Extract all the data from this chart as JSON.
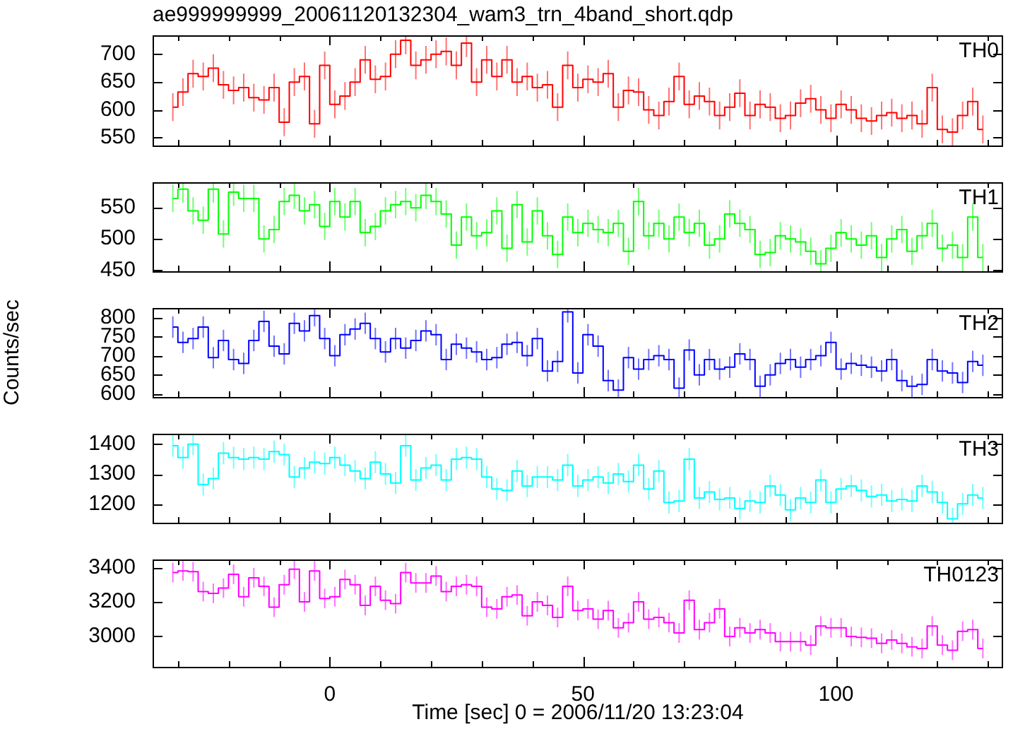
{
  "chart_data": [
    {
      "type": "step",
      "title": "ae999999999_20061120132304_wam3_trn_4band_short.qdp",
      "tick_labels": "y",
      "x": [
        -31,
        -29,
        -27,
        -25,
        -23,
        -21,
        -19,
        -17,
        -15,
        -13,
        -11,
        -9,
        -7,
        -5,
        -3,
        -1,
        1,
        3,
        5,
        7,
        9,
        11,
        13,
        15,
        17,
        19,
        21,
        23,
        25,
        27,
        29,
        31,
        33,
        35,
        37,
        39,
        41,
        43,
        45,
        47,
        49,
        51,
        53,
        55,
        57,
        59,
        61,
        63,
        65,
        67,
        69,
        71,
        73,
        75,
        77,
        79,
        81,
        83,
        85,
        87,
        89,
        91,
        93,
        95,
        97,
        99,
        101,
        103,
        105,
        107,
        109,
        111,
        113,
        115,
        117,
        119,
        121,
        123,
        125,
        127,
        129
      ],
      "xlim": [
        -35,
        133
      ],
      "xticks": [
        {
          "value": -30,
          "label": null
        },
        {
          "value": -20,
          "label": null
        },
        {
          "value": -10,
          "label": null
        },
        0,
        {
          "value": 10,
          "label": null
        },
        {
          "value": 20,
          "label": null
        },
        {
          "value": 30,
          "label": null
        },
        {
          "value": 40,
          "label": null
        },
        50,
        {
          "value": 60,
          "label": null
        },
        {
          "value": 70,
          "label": null
        },
        {
          "value": 80,
          "label": null
        },
        {
          "value": 90,
          "label": null
        },
        100,
        {
          "value": 110,
          "label": null
        },
        {
          "value": 120,
          "label": null
        },
        {
          "value": 130,
          "label": null
        }
      ],
      "ylim": [
        536,
        734
      ],
      "yticks": [
        550,
        600,
        650,
        700
      ],
      "series": [
        {
          "name": "TH0",
          "color": "#ff0000",
          "values": [
            605,
            632,
            665,
            660,
            675,
            645,
            635,
            640,
            622,
            618,
            640,
            578,
            650,
            660,
            575,
            680,
            610,
            625,
            650,
            690,
            655,
            660,
            700,
            725,
            680,
            690,
            700,
            705,
            680,
            720,
            650,
            690,
            660,
            690,
            650,
            660,
            640,
            645,
            605,
            680,
            640,
            655,
            650,
            665,
            605,
            635,
            632,
            600,
            590,
            615,
            660,
            610,
            625,
            615,
            590,
            605,
            630,
            590,
            610,
            605,
            585,
            590,
            612,
            620,
            600,
            585,
            610,
            600,
            585,
            580,
            590,
            595,
            585,
            590,
            575,
            640,
            565,
            560,
            590,
            615,
            565
          ],
          "errors": [
            25,
            25,
            25,
            25,
            25,
            25,
            25,
            25,
            25,
            25,
            25,
            25,
            25,
            25,
            25,
            25,
            25,
            25,
            25,
            25,
            25,
            25,
            25,
            25,
            25,
            25,
            25,
            25,
            25,
            25,
            25,
            25,
            25,
            25,
            25,
            25,
            25,
            25,
            25,
            25,
            25,
            25,
            25,
            25,
            25,
            25,
            25,
            25,
            25,
            25,
            25,
            25,
            25,
            25,
            25,
            25,
            25,
            25,
            25,
            25,
            25,
            25,
            25,
            25,
            25,
            25,
            25,
            25,
            25,
            25,
            25,
            25,
            25,
            25,
            25,
            25,
            25,
            25,
            25,
            25,
            25
          ]
        }
      ]
    },
    {
      "type": "step",
      "tick_labels": "y",
      "x": [
        -31,
        -29,
        -27,
        -25,
        -23,
        -21,
        -19,
        -17,
        -15,
        -13,
        -11,
        -9,
        -7,
        -5,
        -3,
        -1,
        1,
        3,
        5,
        7,
        9,
        11,
        13,
        15,
        17,
        19,
        21,
        23,
        25,
        27,
        29,
        31,
        33,
        35,
        37,
        39,
        41,
        43,
        45,
        47,
        49,
        51,
        53,
        55,
        57,
        59,
        61,
        63,
        65,
        67,
        69,
        71,
        73,
        75,
        77,
        79,
        81,
        83,
        85,
        87,
        89,
        91,
        93,
        95,
        97,
        99,
        101,
        103,
        105,
        107,
        109,
        111,
        113,
        115,
        117,
        119,
        121,
        123,
        125,
        127,
        129
      ],
      "xlim": [
        -35,
        133
      ],
      "xticks": [
        {
          "value": -30,
          "label": null
        },
        {
          "value": -20,
          "label": null
        },
        {
          "value": -10,
          "label": null
        },
        0,
        {
          "value": 10,
          "label": null
        },
        {
          "value": 20,
          "label": null
        },
        {
          "value": 30,
          "label": null
        },
        {
          "value": 40,
          "label": null
        },
        50,
        {
          "value": 60,
          "label": null
        },
        {
          "value": 70,
          "label": null
        },
        {
          "value": 80,
          "label": null
        },
        {
          "value": 90,
          "label": null
        },
        100,
        {
          "value": 110,
          "label": null
        },
        {
          "value": 120,
          "label": null
        },
        {
          "value": 130,
          "label": null
        }
      ],
      "ylim": [
        448,
        591
      ],
      "yticks": [
        450,
        500,
        550
      ],
      "series": [
        {
          "name": "TH1",
          "color": "#00ff00",
          "values": [
            565,
            580,
            545,
            530,
            580,
            508,
            575,
            565,
            565,
            500,
            515,
            560,
            570,
            545,
            555,
            520,
            560,
            535,
            560,
            510,
            520,
            545,
            555,
            560,
            550,
            570,
            560,
            540,
            490,
            535,
            505,
            510,
            545,
            485,
            555,
            495,
            545,
            505,
            475,
            535,
            510,
            525,
            515,
            510,
            525,
            480,
            560,
            505,
            525,
            500,
            535,
            510,
            525,
            490,
            500,
            540,
            525,
            515,
            475,
            478,
            505,
            500,
            495,
            480,
            460,
            485,
            510,
            500,
            490,
            505,
            470,
            500,
            515,
            480,
            505,
            525,
            485,
            490,
            470,
            535,
            470
          ],
          "errors": [
            22,
            22,
            22,
            22,
            22,
            22,
            22,
            22,
            22,
            22,
            22,
            22,
            22,
            22,
            22,
            22,
            22,
            22,
            22,
            22,
            22,
            22,
            22,
            22,
            22,
            22,
            22,
            22,
            22,
            22,
            22,
            22,
            22,
            22,
            22,
            22,
            22,
            22,
            22,
            22,
            22,
            22,
            22,
            22,
            22,
            22,
            22,
            22,
            22,
            22,
            22,
            22,
            22,
            22,
            22,
            22,
            22,
            22,
            22,
            22,
            22,
            22,
            22,
            22,
            22,
            22,
            22,
            22,
            22,
            22,
            22,
            22,
            22,
            22,
            22,
            22,
            22,
            22,
            22,
            22,
            22
          ]
        }
      ]
    },
    {
      "type": "step",
      "tick_labels": "y",
      "ylabel": "Counts/sec",
      "x": [
        -31,
        -29,
        -27,
        -25,
        -23,
        -21,
        -19,
        -17,
        -15,
        -13,
        -11,
        -9,
        -7,
        -5,
        -3,
        -1,
        1,
        3,
        5,
        7,
        9,
        11,
        13,
        15,
        17,
        19,
        21,
        23,
        25,
        27,
        29,
        31,
        33,
        35,
        37,
        39,
        41,
        43,
        45,
        47,
        49,
        51,
        53,
        55,
        57,
        59,
        61,
        63,
        65,
        67,
        69,
        71,
        73,
        75,
        77,
        79,
        81,
        83,
        85,
        87,
        89,
        91,
        93,
        95,
        97,
        99,
        101,
        103,
        105,
        107,
        109,
        111,
        113,
        115,
        117,
        119,
        121,
        123,
        125,
        127,
        129
      ],
      "xlim": [
        -35,
        133
      ],
      "xticks": [
        {
          "value": -30,
          "label": null
        },
        {
          "value": -20,
          "label": null
        },
        {
          "value": -10,
          "label": null
        },
        0,
        {
          "value": 10,
          "label": null
        },
        {
          "value": 20,
          "label": null
        },
        {
          "value": 30,
          "label": null
        },
        {
          "value": 40,
          "label": null
        },
        50,
        {
          "value": 60,
          "label": null
        },
        {
          "value": 70,
          "label": null
        },
        {
          "value": 80,
          "label": null
        },
        {
          "value": 90,
          "label": null
        },
        100,
        {
          "value": 110,
          "label": null
        },
        {
          "value": 120,
          "label": null
        },
        {
          "value": 130,
          "label": null
        }
      ],
      "ylim": [
        592,
        825
      ],
      "yticks": [
        600,
        650,
        700,
        750,
        800
      ],
      "series": [
        {
          "name": "TH2",
          "color": "#0000ff",
          "values": [
            775,
            735,
            745,
            775,
            695,
            740,
            690,
            680,
            740,
            790,
            725,
            705,
            785,
            765,
            805,
            745,
            700,
            755,
            770,
            785,
            745,
            710,
            745,
            720,
            740,
            765,
            755,
            690,
            730,
            720,
            710,
            690,
            695,
            730,
            735,
            700,
            745,
            660,
            685,
            815,
            655,
            755,
            725,
            635,
            610,
            695,
            665,
            690,
            700,
            690,
            615,
            715,
            650,
            690,
            665,
            670,
            705,
            690,
            620,
            650,
            680,
            690,
            670,
            690,
            700,
            735,
            665,
            680,
            675,
            670,
            660,
            690,
            635,
            620,
            625,
            690,
            660,
            655,
            630,
            685,
            675
          ],
          "errors": [
            28,
            28,
            28,
            28,
            28,
            28,
            28,
            28,
            28,
            28,
            28,
            28,
            28,
            28,
            28,
            28,
            28,
            28,
            28,
            28,
            28,
            28,
            28,
            28,
            28,
            28,
            28,
            28,
            28,
            28,
            28,
            28,
            28,
            28,
            28,
            28,
            28,
            28,
            28,
            28,
            28,
            28,
            28,
            28,
            28,
            28,
            28,
            28,
            28,
            28,
            28,
            28,
            28,
            28,
            28,
            28,
            28,
            28,
            28,
            28,
            28,
            28,
            28,
            28,
            28,
            28,
            28,
            28,
            28,
            28,
            28,
            28,
            28,
            28,
            28,
            28,
            28,
            28,
            28,
            28,
            28
          ]
        }
      ]
    },
    {
      "type": "step",
      "tick_labels": "y",
      "x": [
        -31,
        -29,
        -27,
        -25,
        -23,
        -21,
        -19,
        -17,
        -15,
        -13,
        -11,
        -9,
        -7,
        -5,
        -3,
        -1,
        1,
        3,
        5,
        7,
        9,
        11,
        13,
        15,
        17,
        19,
        21,
        23,
        25,
        27,
        29,
        31,
        33,
        35,
        37,
        39,
        41,
        43,
        45,
        47,
        49,
        51,
        53,
        55,
        57,
        59,
        61,
        63,
        65,
        67,
        69,
        71,
        73,
        75,
        77,
        79,
        81,
        83,
        85,
        87,
        89,
        91,
        93,
        95,
        97,
        99,
        101,
        103,
        105,
        107,
        109,
        111,
        113,
        115,
        117,
        119,
        121,
        123,
        125,
        127,
        129
      ],
      "xlim": [
        -35,
        133
      ],
      "xticks": [
        {
          "value": -30,
          "label": null
        },
        {
          "value": -20,
          "label": null
        },
        {
          "value": -10,
          "label": null
        },
        0,
        {
          "value": 10,
          "label": null
        },
        {
          "value": 20,
          "label": null
        },
        {
          "value": 30,
          "label": null
        },
        {
          "value": 40,
          "label": null
        },
        50,
        {
          "value": 60,
          "label": null
        },
        {
          "value": 70,
          "label": null
        },
        {
          "value": 80,
          "label": null
        },
        {
          "value": 90,
          "label": null
        },
        100,
        {
          "value": 110,
          "label": null
        },
        {
          "value": 120,
          "label": null
        },
        {
          "value": 130,
          "label": null
        }
      ],
      "ylim": [
        1137,
        1435
      ],
      "yticks": [
        1200,
        1300,
        1400
      ],
      "series": [
        {
          "name": "TH3",
          "color": "#00ffff",
          "values": [
            1395,
            1355,
            1400,
            1265,
            1285,
            1370,
            1355,
            1350,
            1355,
            1350,
            1375,
            1365,
            1290,
            1320,
            1340,
            1335,
            1355,
            1330,
            1310,
            1285,
            1340,
            1300,
            1270,
            1395,
            1280,
            1320,
            1330,
            1280,
            1350,
            1355,
            1350,
            1290,
            1250,
            1245,
            1310,
            1260,
            1290,
            1290,
            1280,
            1330,
            1260,
            1280,
            1290,
            1270,
            1300,
            1275,
            1330,
            1250,
            1310,
            1205,
            1210,
            1350,
            1220,
            1240,
            1215,
            1220,
            1185,
            1210,
            1205,
            1260,
            1230,
            1180,
            1220,
            1205,
            1280,
            1205,
            1250,
            1260,
            1245,
            1225,
            1230,
            1210,
            1215,
            1210,
            1260,
            1240,
            1205,
            1150,
            1200,
            1230,
            1220
          ],
          "errors": [
            37,
            37,
            37,
            37,
            37,
            37,
            37,
            37,
            37,
            37,
            37,
            37,
            37,
            37,
            37,
            37,
            37,
            37,
            37,
            37,
            37,
            37,
            37,
            37,
            37,
            37,
            37,
            37,
            37,
            37,
            37,
            37,
            37,
            37,
            37,
            37,
            37,
            37,
            37,
            37,
            37,
            37,
            37,
            37,
            37,
            37,
            37,
            37,
            37,
            37,
            37,
            37,
            37,
            37,
            37,
            37,
            37,
            37,
            37,
            37,
            37,
            37,
            37,
            37,
            37,
            37,
            37,
            37,
            37,
            37,
            37,
            37,
            37,
            37,
            37,
            37,
            37,
            37,
            37,
            37,
            37
          ]
        }
      ]
    },
    {
      "type": "step",
      "xlabel": "Time [sec] 0 = 2006/11/20 13:23:04",
      "x": [
        -31,
        -29,
        -27,
        -25,
        -23,
        -21,
        -19,
        -17,
        -15,
        -13,
        -11,
        -9,
        -7,
        -5,
        -3,
        -1,
        1,
        3,
        5,
        7,
        9,
        11,
        13,
        15,
        17,
        19,
        21,
        23,
        25,
        27,
        29,
        31,
        33,
        35,
        37,
        39,
        41,
        43,
        45,
        47,
        49,
        51,
        53,
        55,
        57,
        59,
        61,
        63,
        65,
        67,
        69,
        71,
        73,
        75,
        77,
        79,
        81,
        83,
        85,
        87,
        89,
        91,
        93,
        95,
        97,
        99,
        101,
        103,
        105,
        107,
        109,
        111,
        113,
        115,
        117,
        119,
        121,
        123,
        125,
        127,
        129
      ],
      "xlim": [
        -35,
        133
      ],
      "xticks": [
        {
          "value": -30,
          "label": null
        },
        {
          "value": -20,
          "label": null
        },
        {
          "value": -10,
          "label": null
        },
        0,
        {
          "value": 10,
          "label": null
        },
        {
          "value": 20,
          "label": null
        },
        {
          "value": 30,
          "label": null
        },
        {
          "value": 40,
          "label": null
        },
        50,
        {
          "value": 60,
          "label": null
        },
        {
          "value": 70,
          "label": null
        },
        {
          "value": 80,
          "label": null
        },
        {
          "value": 90,
          "label": null
        },
        100,
        {
          "value": 110,
          "label": null
        },
        {
          "value": 120,
          "label": null
        },
        {
          "value": 130,
          "label": null
        }
      ],
      "ylim": [
        2824,
        3446
      ],
      "yticks": [
        3000,
        3200,
        3400
      ],
      "series": [
        {
          "name": "TH0123",
          "color": "#ff00ff",
          "values": [
            3370,
            3380,
            3375,
            3260,
            3250,
            3280,
            3360,
            3230,
            3340,
            3290,
            3170,
            3300,
            3390,
            3200,
            3380,
            3220,
            3230,
            3330,
            3300,
            3180,
            3290,
            3210,
            3190,
            3370,
            3310,
            3310,
            3350,
            3260,
            3290,
            3300,
            3290,
            3170,
            3160,
            3230,
            3240,
            3120,
            3200,
            3180,
            3110,
            3290,
            3150,
            3160,
            3100,
            3150,
            3050,
            3080,
            3200,
            3100,
            3110,
            3080,
            3020,
            3210,
            3040,
            3080,
            3160,
            3000,
            3050,
            3020,
            3040,
            3020,
            2970,
            2970,
            2970,
            2950,
            3060,
            3050,
            3050,
            3000,
            2995,
            2990,
            2960,
            2980,
            2960,
            2940,
            2930,
            3060,
            2950,
            2920,
            3030,
            3040,
            2930
          ],
          "errors": [
            57,
            57,
            57,
            57,
            57,
            57,
            57,
            57,
            57,
            57,
            57,
            57,
            57,
            57,
            57,
            57,
            57,
            57,
            57,
            57,
            57,
            57,
            57,
            57,
            57,
            57,
            57,
            57,
            57,
            57,
            57,
            57,
            57,
            57,
            57,
            57,
            57,
            57,
            57,
            57,
            57,
            57,
            57,
            57,
            57,
            57,
            57,
            57,
            57,
            57,
            57,
            57,
            57,
            57,
            57,
            57,
            57,
            57,
            57,
            57,
            57,
            57,
            57,
            57,
            57,
            57,
            57,
            57,
            57,
            57,
            57,
            57,
            57,
            57,
            57,
            57,
            57,
            57,
            57,
            57,
            57
          ]
        }
      ]
    }
  ]
}
